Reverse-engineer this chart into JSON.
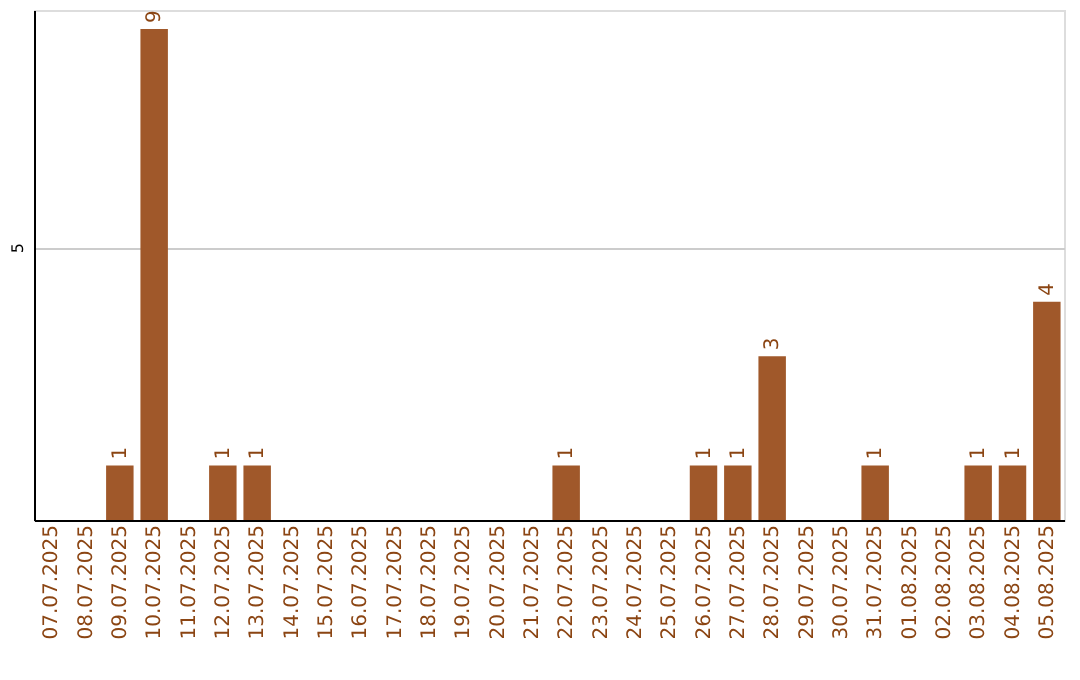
{
  "chart_data": {
    "type": "bar",
    "categories": [
      "07.07.2025",
      "08.07.2025",
      "09.07.2025",
      "10.07.2025",
      "11.07.2025",
      "12.07.2025",
      "13.07.2025",
      "14.07.2025",
      "15.07.2025",
      "16.07.2025",
      "17.07.2025",
      "18.07.2025",
      "19.07.2025",
      "20.07.2025",
      "21.07.2025",
      "22.07.2025",
      "23.07.2025",
      "24.07.2025",
      "25.07.2025",
      "26.07.2025",
      "27.07.2025",
      "28.07.2025",
      "29.07.2025",
      "30.07.2025",
      "31.07.2025",
      "01.08.2025",
      "02.08.2025",
      "03.08.2025",
      "04.08.2025",
      "05.08.2025"
    ],
    "values": [
      0,
      0,
      1,
      9,
      0,
      1,
      1,
      0,
      0,
      0,
      0,
      0,
      0,
      0,
      0,
      1,
      0,
      0,
      0,
      1,
      1,
      3,
      0,
      0,
      1,
      0,
      0,
      1,
      1,
      4
    ],
    "value_labels": [
      null,
      null,
      "1",
      "9",
      null,
      "1",
      "1",
      null,
      null,
      null,
      null,
      null,
      null,
      null,
      null,
      "1",
      null,
      null,
      null,
      "1",
      "1",
      "3",
      null,
      null,
      "1",
      null,
      null,
      "1",
      "1",
      "4"
    ],
    "color": "#a0582a",
    "ylim": [
      0,
      9.35
    ],
    "yticks": [
      5
    ],
    "grid": "y"
  }
}
